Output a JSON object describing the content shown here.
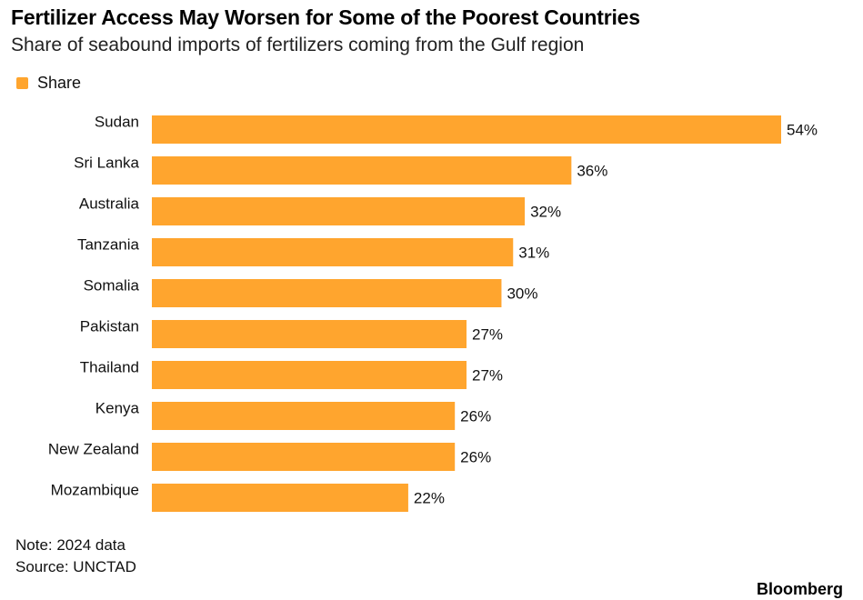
{
  "header": {
    "title": "Fertilizer Access May Worsen for Some of the Poorest Countries",
    "subtitle": "Share of seabound imports of fertilizers coming from the Gulf region"
  },
  "footer": {
    "note": "Note: 2024 data",
    "source": "Source: UNCTAD",
    "brand": "Bloomberg"
  },
  "colors": {
    "bar": "#FFA52E",
    "text": "#000000"
  },
  "chart_data": {
    "type": "bar",
    "orientation": "horizontal",
    "title": "Fertilizer Access May Worsen for Some of the Poorest Countries",
    "subtitle": "Share of seabound imports of fertilizers coming from the Gulf region",
    "xlabel": "",
    "ylabel": "",
    "grid": false,
    "legend_position": "top-left",
    "xlim": [
      0,
      54
    ],
    "categories": [
      "Sudan",
      "Sri Lanka",
      "Australia",
      "Tanzania",
      "Somalia",
      "Pakistan",
      "Thailand",
      "Kenya",
      "New Zealand",
      "Mozambique"
    ],
    "series": [
      {
        "name": "Share",
        "values": [
          54,
          36,
          32,
          31,
          30,
          27,
          27,
          26,
          26,
          22
        ],
        "labels": [
          "54%",
          "36%",
          "32%",
          "31%",
          "30%",
          "27%",
          "27%",
          "26%",
          "26%",
          "22%"
        ]
      }
    ]
  }
}
